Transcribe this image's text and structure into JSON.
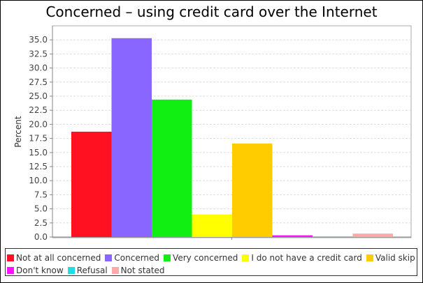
{
  "chart_data": {
    "type": "bar",
    "title": "Concerned – using credit card over the Internet",
    "xlabel": "",
    "ylabel": "Percent",
    "ylim": [
      0,
      37.5
    ],
    "yticks": [
      "0.0",
      "2.5",
      "5.0",
      "7.5",
      "10.0",
      "12.5",
      "15.0",
      "17.5",
      "20.0",
      "22.5",
      "25.0",
      "27.5",
      "30.0",
      "32.5",
      "35.0"
    ],
    "grid": true,
    "legend_position": "bottom",
    "series": [
      {
        "name": "Not at all concerned",
        "value": 18.7,
        "color": "#ff1122"
      },
      {
        "name": "Concerned",
        "value": 35.3,
        "color": "#8866ff"
      },
      {
        "name": "Very concerned",
        "value": 24.4,
        "color": "#11ee11"
      },
      {
        "name": "I do not have a credit card",
        "value": 4.0,
        "color": "#ffff00"
      },
      {
        "name": "Valid skip",
        "value": 16.6,
        "color": "#ffcc00"
      },
      {
        "name": "Don't know",
        "value": 0.3,
        "color": "#ff11ff"
      },
      {
        "name": "Refusal",
        "value": 0.1,
        "color": "#22dddd"
      },
      {
        "name": "Not stated",
        "value": 0.6,
        "color": "#ffaaaa"
      }
    ]
  }
}
